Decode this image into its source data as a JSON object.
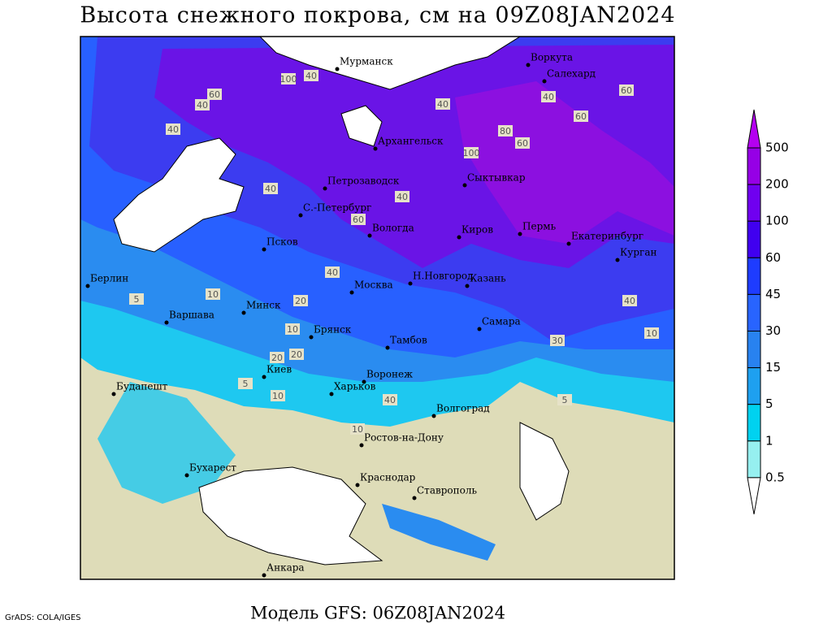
{
  "title": "Высота снежного покрова, см на 09Z08JAN2024",
  "model": "Модель GFS: 06Z08JAN2024",
  "credit": "GrADS: COLA/IGES",
  "cities": [
    "Мурманск",
    "Воркута",
    "Салехард",
    "Архангельск",
    "Сыктывкар",
    "Петрозаводск",
    "С.-Петербург",
    "Вологда",
    "Киров",
    "Пермь",
    "Екатеринбург",
    "Курган",
    "Псков",
    "Н.Новгород",
    "Казань",
    "Москва",
    "Берлин",
    "Варшава",
    "Минск",
    "Брянск",
    "Тамбов",
    "Самара",
    "Киев",
    "Воронеж",
    "Будапешт",
    "Харьков",
    "Волгоград",
    "Ростов-на-Дону",
    "Бухарест",
    "Краснодар",
    "Ставрополь",
    "Анкара"
  ],
  "contour_labels": [
    100,
    40,
    60,
    40,
    40,
    40,
    80,
    60,
    100,
    60,
    60,
    40,
    40,
    40,
    60,
    40,
    20,
    10,
    10,
    20,
    5,
    10,
    5,
    10,
    30,
    40,
    5,
    40,
    10,
    20
  ],
  "colorbar": {
    "levels": [
      500,
      200,
      100,
      60,
      45,
      30,
      15,
      5,
      1,
      0.5
    ],
    "colors": [
      "#b400f0",
      "#9600e6",
      "#7000f0",
      "#4000f0",
      "#1e3cff",
      "#2864ff",
      "#2882f0",
      "#1ea0f0",
      "#00d2f0",
      "#96f0f0",
      "#ffffff"
    ]
  }
}
